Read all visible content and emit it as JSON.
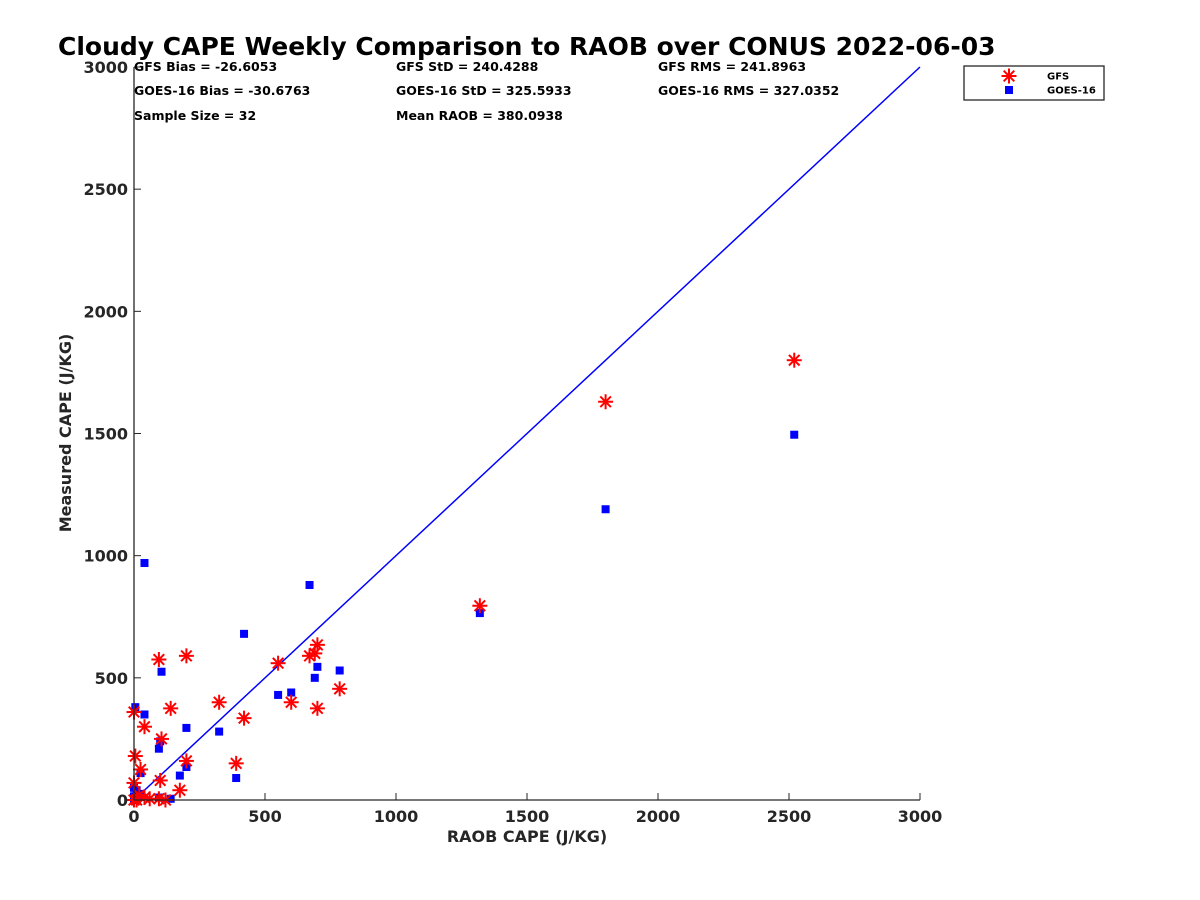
{
  "chart_data": {
    "type": "scatter",
    "title": "Cloudy CAPE Weekly Comparison to RAOB over CONUS 2022-06-03",
    "xlabel": "RAOB CAPE (J/KG)",
    "ylabel": "Measured CAPE (J/KG)",
    "xlim": [
      0,
      3000
    ],
    "ylim": [
      0,
      3000
    ],
    "xticks": [
      0,
      500,
      1000,
      1500,
      2000,
      2500,
      3000
    ],
    "yticks": [
      0,
      500,
      1000,
      1500,
      2000,
      2500,
      3000
    ],
    "grid": false,
    "legend_position": "top-right",
    "reference_line": {
      "x": [
        0,
        3000
      ],
      "y": [
        0,
        3000
      ],
      "color": "#0000ff"
    },
    "stats": [
      "GFS Bias = -26.6053",
      "GFS StD = 240.4288",
      "GFS RMS = 241.8963",
      "GOES-16 Bias = -30.6763",
      "GOES-16 StD = 325.5933",
      "GOES-16 RMS = 327.0352",
      "Sample Size = 32",
      "Mean RAOB = 380.0938"
    ],
    "series": [
      {
        "name": "GFS",
        "marker": "asterisk",
        "color": "#ff0000",
        "points": [
          [
            2520,
            1800
          ],
          [
            1800,
            1630
          ],
          [
            1320,
            795
          ],
          [
            700,
            635
          ],
          [
            690,
            600
          ],
          [
            670,
            590
          ],
          [
            550,
            560
          ],
          [
            600,
            400
          ],
          [
            700,
            375
          ],
          [
            785,
            455
          ],
          [
            420,
            335
          ],
          [
            325,
            400
          ],
          [
            390,
            150
          ],
          [
            200,
            590
          ],
          [
            95,
            575
          ],
          [
            140,
            375
          ],
          [
            40,
            300
          ],
          [
            0,
            360
          ],
          [
            105,
            250
          ],
          [
            5,
            180
          ],
          [
            200,
            160
          ],
          [
            25,
            125
          ],
          [
            100,
            80
          ],
          [
            0,
            70
          ],
          [
            175,
            40
          ],
          [
            20,
            20
          ],
          [
            40,
            10
          ],
          [
            95,
            5
          ],
          [
            0,
            0
          ],
          [
            60,
            5
          ],
          [
            10,
            0
          ],
          [
            120,
            0
          ]
        ]
      },
      {
        "name": "GOES-16",
        "marker": "square",
        "color": "#0000ff",
        "points": [
          [
            2520,
            1495
          ],
          [
            1800,
            1190
          ],
          [
            1320,
            765
          ],
          [
            670,
            880
          ],
          [
            420,
            680
          ],
          [
            40,
            970
          ],
          [
            700,
            545
          ],
          [
            690,
            500
          ],
          [
            785,
            530
          ],
          [
            550,
            430
          ],
          [
            600,
            440
          ],
          [
            105,
            525
          ],
          [
            5,
            380
          ],
          [
            40,
            350
          ],
          [
            200,
            295
          ],
          [
            325,
            280
          ],
          [
            100,
            240
          ],
          [
            95,
            210
          ],
          [
            200,
            135
          ],
          [
            25,
            110
          ],
          [
            175,
            100
          ],
          [
            390,
            90
          ],
          [
            0,
            50
          ],
          [
            10,
            40
          ],
          [
            20,
            25
          ],
          [
            0,
            15
          ],
          [
            95,
            10
          ],
          [
            140,
            5
          ],
          [
            0,
            0
          ],
          [
            25,
            20
          ],
          [
            5,
            5
          ],
          [
            10,
            2
          ]
        ]
      }
    ]
  }
}
